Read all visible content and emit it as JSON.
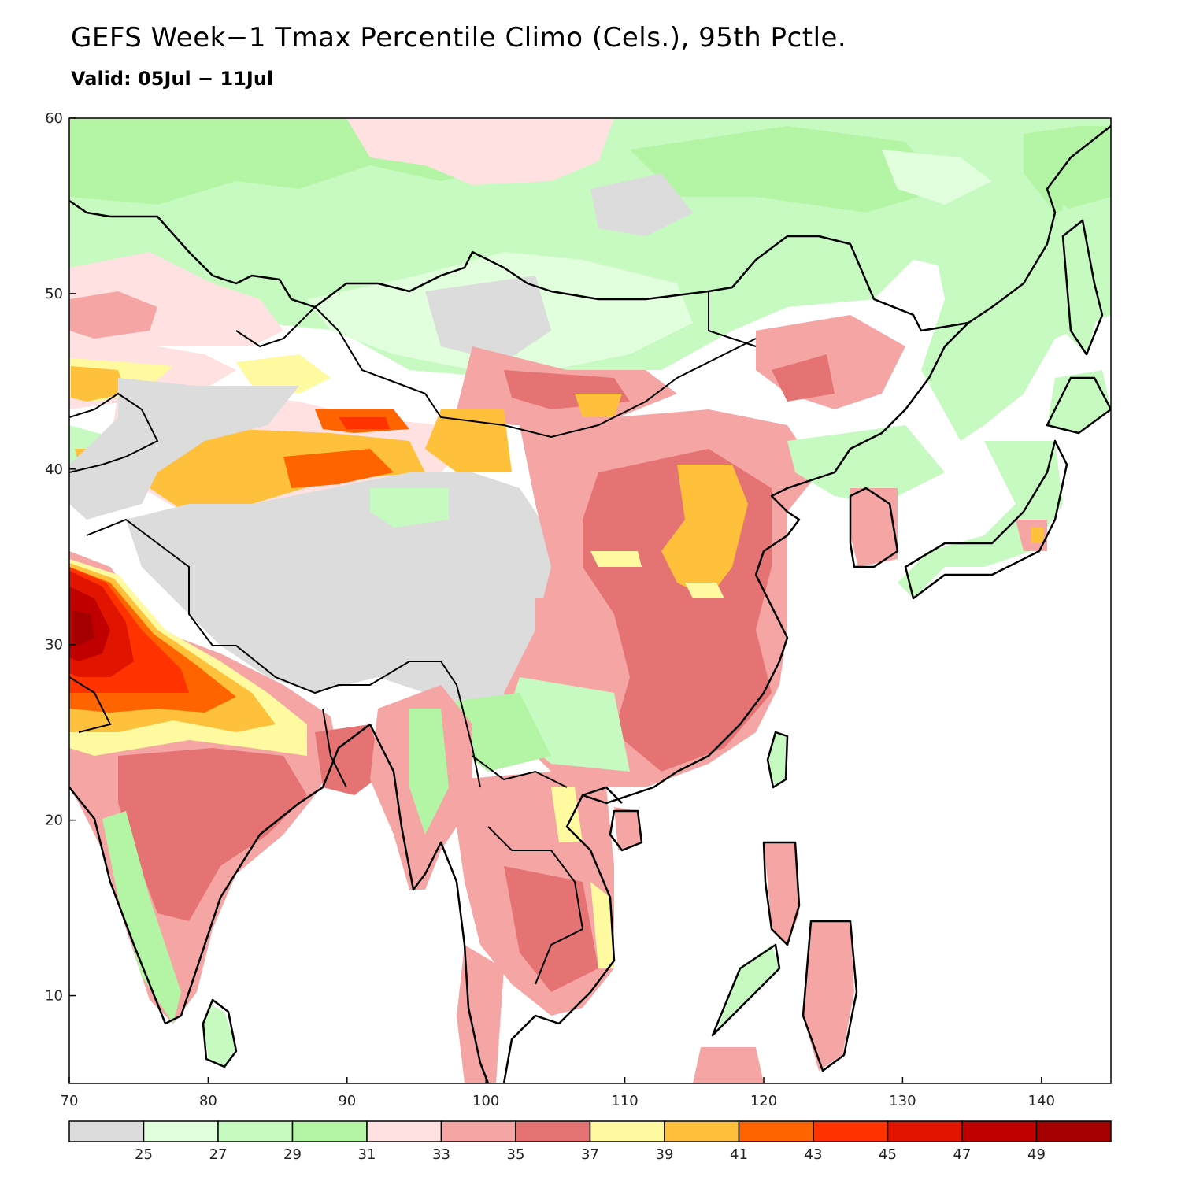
{
  "title": "GEFS Week−1 Tmax Percentile Climo (Cels.), 95th Pctle.",
  "subtitle": "Valid: 05Jul − 11Jul",
  "map": {
    "lon_range": [
      70,
      145
    ],
    "lat_range": [
      5,
      60
    ],
    "lon_ticks": [
      "70",
      "80",
      "90",
      "100",
      "110",
      "120",
      "130",
      "140"
    ],
    "lat_ticks": [
      "10",
      "20",
      "30",
      "40",
      "50",
      "60"
    ],
    "ocean_color": "#ffffff",
    "coastline_color": "#000000"
  },
  "colorbar": {
    "colors": [
      "#dcdcdc",
      "#e1ffdc",
      "#c6fac1",
      "#b4f5a5",
      "#ffe1e1",
      "#f6a5a5",
      "#e67373",
      "#fffaa0",
      "#ffc03c",
      "#ff6400",
      "#ff3200",
      "#e11400",
      "#c00000",
      "#a50000"
    ],
    "labels": [
      "25",
      "27",
      "29",
      "31",
      "33",
      "35",
      "37",
      "39",
      "41",
      "43",
      "45",
      "47",
      "49"
    ]
  },
  "chart_data": {
    "type": "heatmap",
    "title": "GEFS Week−1 Tmax Percentile Climo (Cels.), 95th Pctle.",
    "subtitle": "Valid: 05Jul − 11Jul",
    "variable": "Tmax 95th percentile",
    "units": "Cels.",
    "x_range": [
      70,
      145
    ],
    "y_range": [
      5,
      60
    ],
    "levels": [
      25,
      27,
      29,
      31,
      33,
      35,
      37,
      39,
      41,
      43,
      45,
      47,
      49
    ]
  }
}
